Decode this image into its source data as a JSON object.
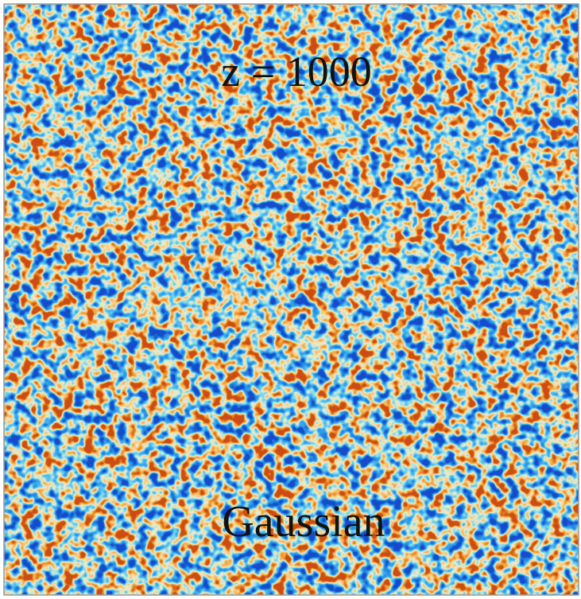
{
  "title": "z = 1000",
  "label": "Gaussian"
}
